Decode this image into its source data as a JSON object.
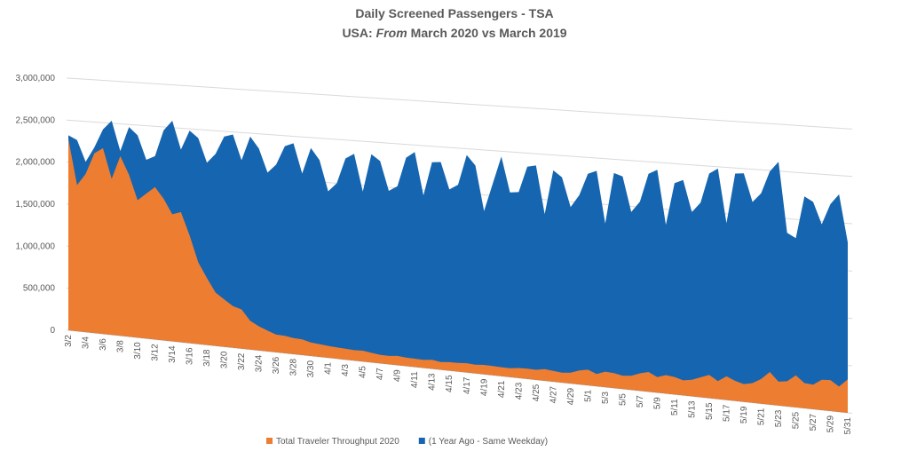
{
  "chart_data": {
    "type": "area",
    "title": "Daily Screened Passengers - TSA",
    "subtitle": [
      "USA:",
      "From",
      "March 2020 vs March 2019"
    ],
    "categories": [
      "3/2",
      null,
      "3/4",
      null,
      "3/6",
      null,
      "3/8",
      null,
      "3/10",
      null,
      "3/12",
      null,
      "3/14",
      null,
      "3/16",
      null,
      "3/18",
      null,
      "3/20",
      null,
      "3/22",
      null,
      "3/24",
      null,
      "3/26",
      null,
      "3/28",
      null,
      "3/30",
      null,
      "4/1",
      null,
      "4/3",
      null,
      "4/5",
      null,
      "4/7",
      null,
      "4/9",
      null,
      "4/11",
      null,
      "4/13",
      null,
      "4/15",
      null,
      "4/17",
      null,
      "4/19",
      null,
      "4/21",
      null,
      "4/23",
      null,
      "4/25",
      null,
      "4/27",
      null,
      "4/29",
      null,
      "5/1",
      null,
      "5/3",
      null,
      "5/5",
      null,
      "5/7",
      null,
      "5/9",
      null,
      "5/11",
      null,
      "5/13",
      null,
      "5/15",
      null,
      "5/17",
      null,
      "5/19",
      null,
      "5/21",
      null,
      "5/23",
      null,
      "5/25",
      null,
      "5/27",
      null,
      "5/29",
      null,
      "5/31"
    ],
    "series": [
      {
        "name": "(1 Year Ago - Same Weekday)",
        "color": "#1565b0",
        "values": [
          2320000,
          2270000,
          2020000,
          2200000,
          2420000,
          2530000,
          2180000,
          2470000,
          2380000,
          2100000,
          2150000,
          2460000,
          2580000,
          2250000,
          2480000,
          2400000,
          2120000,
          2230000,
          2440000,
          2470000,
          2180000,
          2460000,
          2330000,
          2060000,
          2160000,
          2380000,
          2420000,
          2080000,
          2380000,
          2250000,
          1900000,
          2000000,
          2290000,
          2350000,
          1930000,
          2360000,
          2290000,
          1960000,
          2020000,
          2350000,
          2420000,
          1940000,
          2320000,
          2330000,
          2030000,
          2090000,
          2430000,
          2320000,
          1820000,
          2130000,
          2440000,
          2050000,
          2060000,
          2350000,
          2370000,
          1840000,
          2330000,
          2260000,
          1940000,
          2080000,
          2320000,
          2360000,
          1790000,
          2350000,
          2320000,
          1940000,
          2060000,
          2370000,
          2420000,
          1830000,
          2290000,
          2330000,
          1990000,
          2100000,
          2420000,
          2480000,
          1900000,
          2440000,
          2450000,
          2150000,
          2250000,
          2490000,
          2600000,
          1850000,
          1800000,
          2250000,
          2200000,
          1970000,
          2190000,
          2300000,
          1800000
        ]
      },
      {
        "name": "Total Traveler Throughput 2020",
        "color": "#ed7d31",
        "values": [
          2280000,
          1736000,
          1877000,
          2130000,
          2198000,
          1844000,
          2119000,
          1909000,
          1617000,
          1703000,
          1788000,
          1660000,
          1485000,
          1520000,
          1257000,
          953000,
          779000,
          620000,
          549000,
          483000,
          454000,
          331000,
          279000,
          239000,
          203000,
          199000,
          184000,
          180000,
          154000,
          146000,
          136000,
          129000,
          124000,
          118000,
          122000,
          108000,
          97000,
          94000,
          104000,
          96000,
          93000,
          90000,
          102000,
          87000,
          95000,
          96000,
          104000,
          97000,
          105000,
          103000,
          99000,
          98000,
          111000,
          114000,
          111000,
          128000,
          119000,
          110000,
          119000,
          154000,
          171000,
          134000,
          170000,
          163000,
          146000,
          155000,
          190000,
          215000,
          169000,
          200000,
          190000,
          163000,
          179000,
          215000,
          250000,
          193000,
          254000,
          215000,
          190000,
          210000,
          264000,
          348000,
          254000,
          268000,
          340000,
          267000,
          261000,
          321000,
          327000,
          268000,
          353000
        ]
      }
    ],
    "legend": "bottom",
    "ylim": [
      0,
      3000000
    ],
    "yticks": [
      0,
      {
        "value": 500000,
        "label": "500,000"
      },
      {
        "value": 1000000,
        "label": "1,000,000"
      },
      {
        "value": 1500000,
        "label": "1,500,000"
      },
      {
        "value": 2000000,
        "label": "2,000,000"
      },
      {
        "value": 2500000,
        "label": "2,500,000"
      },
      {
        "value": 3000000,
        "label": "3,000,000"
      }
    ],
    "grid": true
  }
}
